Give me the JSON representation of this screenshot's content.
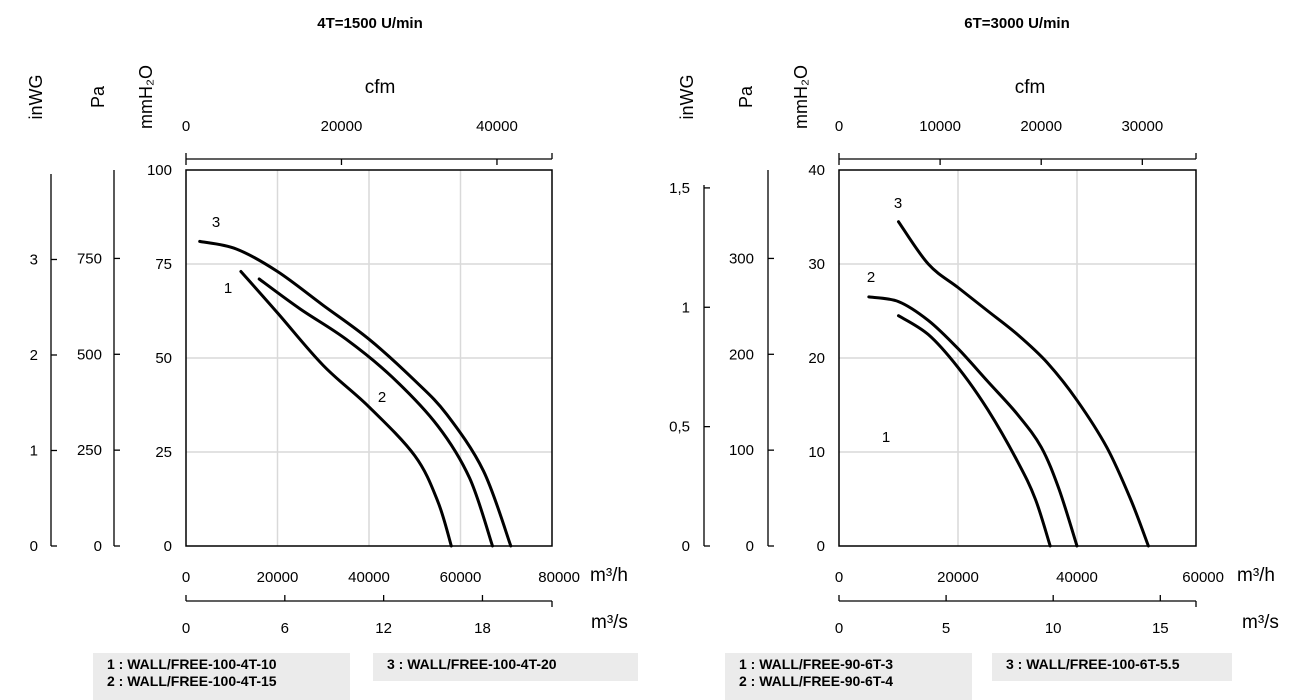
{
  "chart_data": [
    {
      "type": "line",
      "title": "4T=1500 U/min",
      "xlabel": "m³/h",
      "xlim": [
        0,
        80000
      ],
      "x_ticks": [
        "0",
        "20000",
        "40000",
        "60000",
        "80000"
      ],
      "ylabel": "mmH₂O",
      "ylim": [
        0,
        100
      ],
      "y_ticks": [
        "0",
        "25",
        "50",
        "75",
        "100"
      ],
      "secondary_axes": {
        "cfm": {
          "label": "cfm",
          "ticks": [
            0,
            20000,
            40000
          ],
          "tick_labels": [
            "0",
            "20000",
            "40000"
          ]
        },
        "m3s": {
          "label": "m³/s",
          "ticks": [
            0,
            6,
            12,
            18
          ],
          "tick_labels": [
            "0",
            "6",
            "12",
            "18"
          ]
        },
        "pa": {
          "label": "Pa",
          "ticks": [
            0,
            250,
            500,
            750
          ],
          "tick_labels": [
            "0",
            "250",
            "500",
            "750"
          ]
        },
        "inwg": {
          "label": "inWG",
          "ticks": [
            0,
            1,
            2,
            3
          ],
          "tick_labels": [
            "0",
            "1",
            "2",
            "3"
          ]
        }
      },
      "grid": true,
      "series": [
        {
          "curve_label": "1",
          "x": [
            12000,
            20000,
            30000,
            40000,
            50000,
            55000,
            58000
          ],
          "y": [
            73,
            62,
            48,
            37,
            24,
            12,
            0
          ]
        },
        {
          "curve_label": "2",
          "x": [
            16000,
            25000,
            35000,
            45000,
            55000,
            62000,
            67000
          ],
          "y": [
            71,
            63,
            55,
            45,
            32,
            18,
            0
          ]
        },
        {
          "curve_label": "3",
          "x": [
            3000,
            11000,
            20000,
            30000,
            40000,
            50000,
            57000,
            65000,
            71000
          ],
          "y": [
            81,
            79,
            73,
            64,
            55,
            44,
            35,
            20,
            0
          ]
        }
      ],
      "legend": [
        "1 : WALL/FREE-100-4T-10",
        "2 : WALL/FREE-100-4T-15",
        "3 : WALL/FREE-100-4T-20"
      ]
    },
    {
      "type": "line",
      "title": "6T=3000 U/min",
      "xlabel": "m³/h",
      "xlim": [
        0,
        60000
      ],
      "x_ticks": [
        "0",
        "20000",
        "40000",
        "60000"
      ],
      "ylabel": "mmH₂O",
      "ylim": [
        0,
        40
      ],
      "y_ticks": [
        "0",
        "10",
        "20",
        "30",
        "40"
      ],
      "secondary_axes": {
        "cfm": {
          "label": "cfm",
          "ticks": [
            0,
            10000,
            20000,
            30000
          ],
          "tick_labels": [
            "0",
            "10000",
            "20000",
            "30000"
          ]
        },
        "m3s": {
          "label": "m³/s",
          "ticks": [
            0,
            5,
            10,
            15
          ],
          "tick_labels": [
            "0",
            "5",
            "10",
            "15"
          ]
        },
        "pa": {
          "label": "Pa",
          "ticks": [
            0,
            100,
            200,
            300
          ],
          "tick_labels": [
            "0",
            "100",
            "200",
            "300"
          ]
        },
        "inwg": {
          "label": "inWG",
          "ticks": [
            0,
            0.5,
            1,
            1.5
          ],
          "tick_labels": [
            "0",
            "0,5",
            "1",
            "1,5"
          ]
        }
      },
      "grid": true,
      "series": [
        {
          "curve_label": "1",
          "x": [
            10000,
            15000,
            20000,
            25000,
            30000,
            33000,
            35500
          ],
          "y": [
            24.5,
            22.5,
            19,
            14.5,
            9,
            5,
            0
          ]
        },
        {
          "curve_label": "2",
          "x": [
            5000,
            10000,
            15000,
            20000,
            25000,
            30000,
            34000,
            37000,
            40000
          ],
          "y": [
            26.5,
            26,
            24,
            21,
            17.5,
            14,
            10.5,
            6,
            0
          ]
        },
        {
          "curve_label": "3",
          "x": [
            10000,
            15000,
            20000,
            25000,
            30000,
            35000,
            40000,
            45000,
            49000,
            52000
          ],
          "y": [
            34.5,
            30,
            27.5,
            25,
            22.5,
            19.5,
            15.5,
            10.5,
            5,
            0
          ]
        }
      ],
      "legend": [
        "1 : WALL/FREE-90-6T-3",
        "2 : WALL/FREE-90-6T-4",
        "3 : WALL/FREE-100-6T-5.5"
      ]
    }
  ]
}
